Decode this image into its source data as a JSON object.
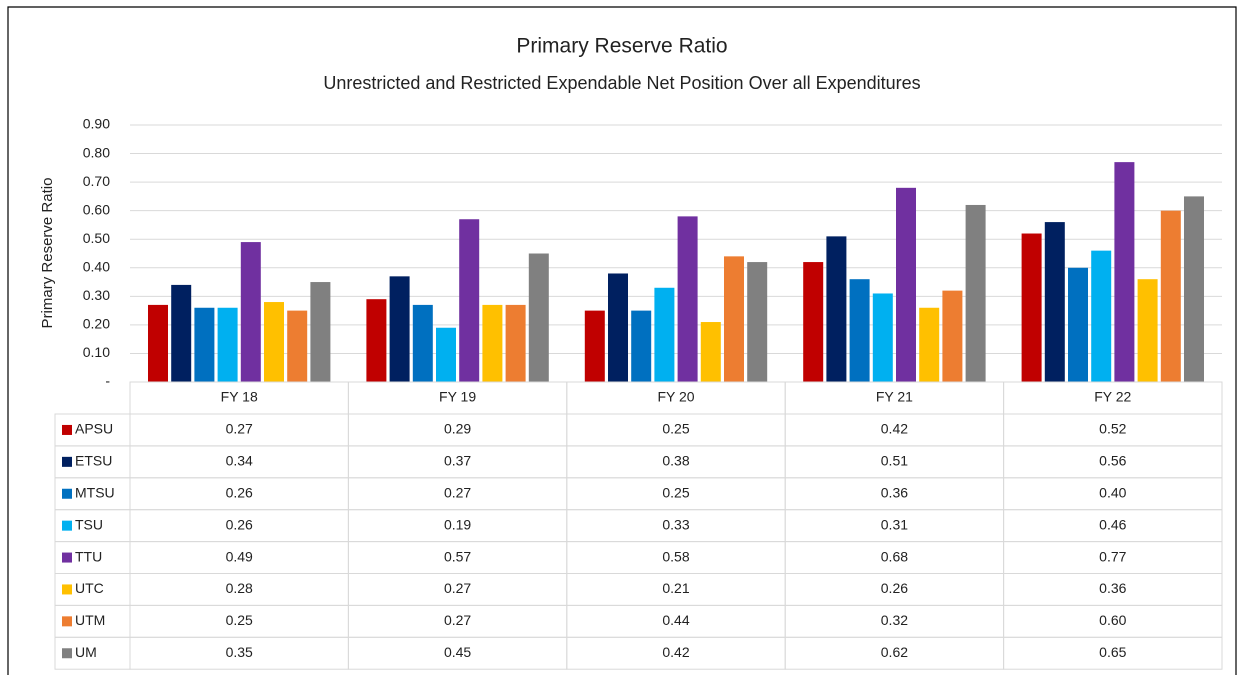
{
  "chart_data": {
    "type": "bar",
    "title": "Primary Reserve Ratio",
    "subtitle": "Unrestricted and Restricted Expendable Net Position Over all Expenditures",
    "y_label": "Primary Reserve Ratio",
    "categories": [
      "FY 18",
      "FY 19",
      "FY 20",
      "FY 21",
      "FY 22"
    ],
    "series": [
      {
        "name": "APSU",
        "color": "#c00000",
        "values": [
          0.27,
          0.29,
          0.25,
          0.42,
          0.52
        ],
        "value_labels": [
          "0.27",
          "0.29",
          "0.25",
          "0.42",
          "0.52"
        ]
      },
      {
        "name": "ETSU",
        "color": "#002060",
        "values": [
          0.34,
          0.37,
          0.38,
          0.51,
          0.56
        ],
        "value_labels": [
          "0.34",
          "0.37",
          "0.38",
          "0.51",
          "0.56"
        ]
      },
      {
        "name": "MTSU",
        "color": "#0070c0",
        "values": [
          0.26,
          0.27,
          0.25,
          0.36,
          0.4
        ],
        "value_labels": [
          "0.26",
          "0.27",
          "0.25",
          "0.36",
          "0.40"
        ]
      },
      {
        "name": "TSU",
        "color": "#00b0f0",
        "values": [
          0.26,
          0.19,
          0.33,
          0.31,
          0.46
        ],
        "value_labels": [
          "0.26",
          "0.19",
          "0.33",
          "0.31",
          "0.46"
        ]
      },
      {
        "name": "TTU",
        "color": "#7030a0",
        "values": [
          0.49,
          0.57,
          0.58,
          0.68,
          0.77
        ],
        "value_labels": [
          "0.49",
          "0.57",
          "0.58",
          "0.68",
          "0.77"
        ]
      },
      {
        "name": "UTC",
        "color": "#ffc000",
        "values": [
          0.28,
          0.27,
          0.21,
          0.26,
          0.36
        ],
        "value_labels": [
          "0.28",
          "0.27",
          "0.21",
          "0.26",
          "0.36"
        ]
      },
      {
        "name": "UTM",
        "color": "#ed7d31",
        "values": [
          0.25,
          0.27,
          0.44,
          0.32,
          0.6
        ],
        "value_labels": [
          "0.25",
          "0.27",
          "0.44",
          "0.32",
          "0.60"
        ]
      },
      {
        "name": "UM",
        "color": "#808080",
        "values": [
          0.35,
          0.45,
          0.42,
          0.62,
          0.65
        ],
        "value_labels": [
          "0.35",
          "0.45",
          "0.42",
          "0.62",
          "0.65"
        ]
      }
    ],
    "ylim": [
      0,
      0.9
    ],
    "yticks": [
      {
        "value": 0,
        "label": "-"
      },
      {
        "value": 0.1,
        "label": "0.10"
      },
      {
        "value": 0.2,
        "label": "0.20"
      },
      {
        "value": 0.3,
        "label": "0.30"
      },
      {
        "value": 0.4,
        "label": "0.40"
      },
      {
        "value": 0.5,
        "label": "0.50"
      },
      {
        "value": 0.6,
        "label": "0.60"
      },
      {
        "value": 0.7,
        "label": "0.70"
      },
      {
        "value": 0.8,
        "label": "0.80"
      },
      {
        "value": 0.9,
        "label": "0.90"
      }
    ],
    "grid": true
  }
}
